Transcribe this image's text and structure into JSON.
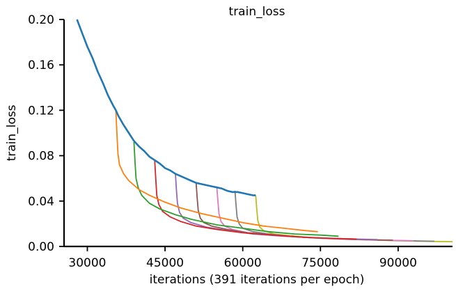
{
  "chart_data": {
    "type": "line",
    "title": "train_loss",
    "xlabel": "iterations (391 iterations per epoch)",
    "ylabel": "train_loss",
    "xlim": [
      25500,
      100500
    ],
    "ylim": [
      0.0,
      0.2
    ],
    "xticks": [
      "30000",
      "45000",
      "60000",
      "75000",
      "90000"
    ],
    "xtick_values": [
      30000,
      45000,
      60000,
      75000,
      90000
    ],
    "yticks": [
      "0.00",
      "0.04",
      "0.08",
      "0.12",
      "0.16",
      "0.20"
    ],
    "ytick_values": [
      0.0,
      0.04,
      0.08,
      0.12,
      0.16,
      0.2
    ],
    "grid": false,
    "series": [
      {
        "color": "#1f77b4",
        "points": [
          [
            28000,
            0.2
          ],
          [
            29000,
            0.188
          ],
          [
            30000,
            0.176
          ],
          [
            31000,
            0.166
          ],
          [
            32000,
            0.154
          ],
          [
            33000,
            0.144
          ],
          [
            34000,
            0.133
          ],
          [
            35000,
            0.124
          ],
          [
            35500,
            0.12
          ],
          [
            36000,
            0.115
          ],
          [
            37000,
            0.107
          ],
          [
            38000,
            0.1
          ],
          [
            39000,
            0.093
          ],
          [
            40000,
            0.088
          ],
          [
            41000,
            0.084
          ],
          [
            42000,
            0.079
          ],
          [
            43000,
            0.076
          ],
          [
            44000,
            0.073
          ],
          [
            45000,
            0.069
          ],
          [
            46000,
            0.067
          ],
          [
            47000,
            0.064
          ],
          [
            48000,
            0.062
          ],
          [
            49000,
            0.06
          ],
          [
            50000,
            0.058
          ],
          [
            51000,
            0.056
          ],
          [
            52000,
            0.055
          ],
          [
            53000,
            0.054
          ],
          [
            54000,
            0.053
          ],
          [
            55000,
            0.052
          ],
          [
            56000,
            0.051
          ],
          [
            57000,
            0.049
          ],
          [
            58000,
            0.048
          ],
          [
            59000,
            0.048
          ],
          [
            60000,
            0.047
          ],
          [
            61000,
            0.046
          ],
          [
            62000,
            0.045
          ],
          [
            62500,
            0.045
          ]
        ]
      },
      {
        "color": "#ff7f0e",
        "points": [
          [
            35500,
            0.12
          ],
          [
            35700,
            0.1
          ],
          [
            35900,
            0.082
          ],
          [
            36200,
            0.072
          ],
          [
            37000,
            0.064
          ],
          [
            38000,
            0.058
          ],
          [
            40000,
            0.05
          ],
          [
            42000,
            0.045
          ],
          [
            45000,
            0.039
          ],
          [
            48000,
            0.034
          ],
          [
            52000,
            0.029
          ],
          [
            56000,
            0.025
          ],
          [
            60000,
            0.021
          ],
          [
            64000,
            0.018
          ],
          [
            68000,
            0.016
          ],
          [
            72000,
            0.014
          ],
          [
            74500,
            0.013
          ]
        ]
      },
      {
        "color": "#2ca02c",
        "points": [
          [
            39000,
            0.092
          ],
          [
            39200,
            0.075
          ],
          [
            39400,
            0.06
          ],
          [
            39800,
            0.052
          ],
          [
            40500,
            0.045
          ],
          [
            42000,
            0.038
          ],
          [
            44000,
            0.033
          ],
          [
            47000,
            0.028
          ],
          [
            50000,
            0.024
          ],
          [
            55000,
            0.019
          ],
          [
            60000,
            0.016
          ],
          [
            65000,
            0.013
          ],
          [
            70000,
            0.011
          ],
          [
            75000,
            0.01
          ],
          [
            78500,
            0.009
          ]
        ]
      },
      {
        "color": "#d62728",
        "points": [
          [
            43000,
            0.076
          ],
          [
            43200,
            0.06
          ],
          [
            43400,
            0.045
          ],
          [
            43800,
            0.037
          ],
          [
            44500,
            0.031
          ],
          [
            46000,
            0.026
          ],
          [
            48000,
            0.022
          ],
          [
            51000,
            0.018
          ],
          [
            55000,
            0.015
          ],
          [
            60000,
            0.012
          ],
          [
            66000,
            0.01
          ],
          [
            72000,
            0.008
          ],
          [
            78000,
            0.007
          ],
          [
            82000,
            0.0065
          ]
        ]
      },
      {
        "color": "#9467bd",
        "points": [
          [
            47000,
            0.064
          ],
          [
            47200,
            0.05
          ],
          [
            47400,
            0.038
          ],
          [
            47800,
            0.03
          ],
          [
            48500,
            0.025
          ],
          [
            50000,
            0.021
          ],
          [
            53000,
            0.017
          ],
          [
            57000,
            0.014
          ],
          [
            62000,
            0.011
          ],
          [
            68000,
            0.009
          ],
          [
            75000,
            0.0075
          ],
          [
            82000,
            0.0065
          ],
          [
            86000,
            0.006
          ]
        ]
      },
      {
        "color": "#8c564b",
        "points": [
          [
            51000,
            0.056
          ],
          [
            51200,
            0.043
          ],
          [
            51400,
            0.032
          ],
          [
            51800,
            0.025
          ],
          [
            52500,
            0.021
          ],
          [
            54000,
            0.018
          ],
          [
            57000,
            0.015
          ],
          [
            61000,
            0.012
          ],
          [
            66000,
            0.01
          ],
          [
            72000,
            0.008
          ],
          [
            78000,
            0.0068
          ],
          [
            85000,
            0.0058
          ],
          [
            89000,
            0.0055
          ]
        ]
      },
      {
        "color": "#e377c2",
        "points": [
          [
            55000,
            0.052
          ],
          [
            55200,
            0.04
          ],
          [
            55400,
            0.029
          ],
          [
            55800,
            0.022
          ],
          [
            56500,
            0.018
          ],
          [
            58000,
            0.015
          ],
          [
            61000,
            0.012
          ],
          [
            65000,
            0.01
          ],
          [
            70000,
            0.0085
          ],
          [
            76000,
            0.007
          ],
          [
            83000,
            0.006
          ],
          [
            90000,
            0.0052
          ],
          [
            93000,
            0.005
          ]
        ]
      },
      {
        "color": "#7f7f7f",
        "points": [
          [
            58500,
            0.049
          ],
          [
            58700,
            0.037
          ],
          [
            58900,
            0.026
          ],
          [
            59300,
            0.02
          ],
          [
            60000,
            0.016
          ],
          [
            62000,
            0.013
          ],
          [
            65000,
            0.011
          ],
          [
            69000,
            0.009
          ],
          [
            74000,
            0.0075
          ],
          [
            80000,
            0.0063
          ],
          [
            87000,
            0.0055
          ],
          [
            94000,
            0.0048
          ],
          [
            97000,
            0.0046
          ]
        ]
      },
      {
        "color": "#bcbd22",
        "points": [
          [
            62500,
            0.045
          ],
          [
            62700,
            0.033
          ],
          [
            62900,
            0.023
          ],
          [
            63300,
            0.017
          ],
          [
            64000,
            0.014
          ],
          [
            66000,
            0.011
          ],
          [
            69000,
            0.0095
          ],
          [
            73000,
            0.008
          ],
          [
            78000,
            0.0068
          ],
          [
            84000,
            0.0058
          ],
          [
            90000,
            0.005
          ],
          [
            96000,
            0.0045
          ],
          [
            100500,
            0.0042
          ]
        ]
      }
    ]
  }
}
